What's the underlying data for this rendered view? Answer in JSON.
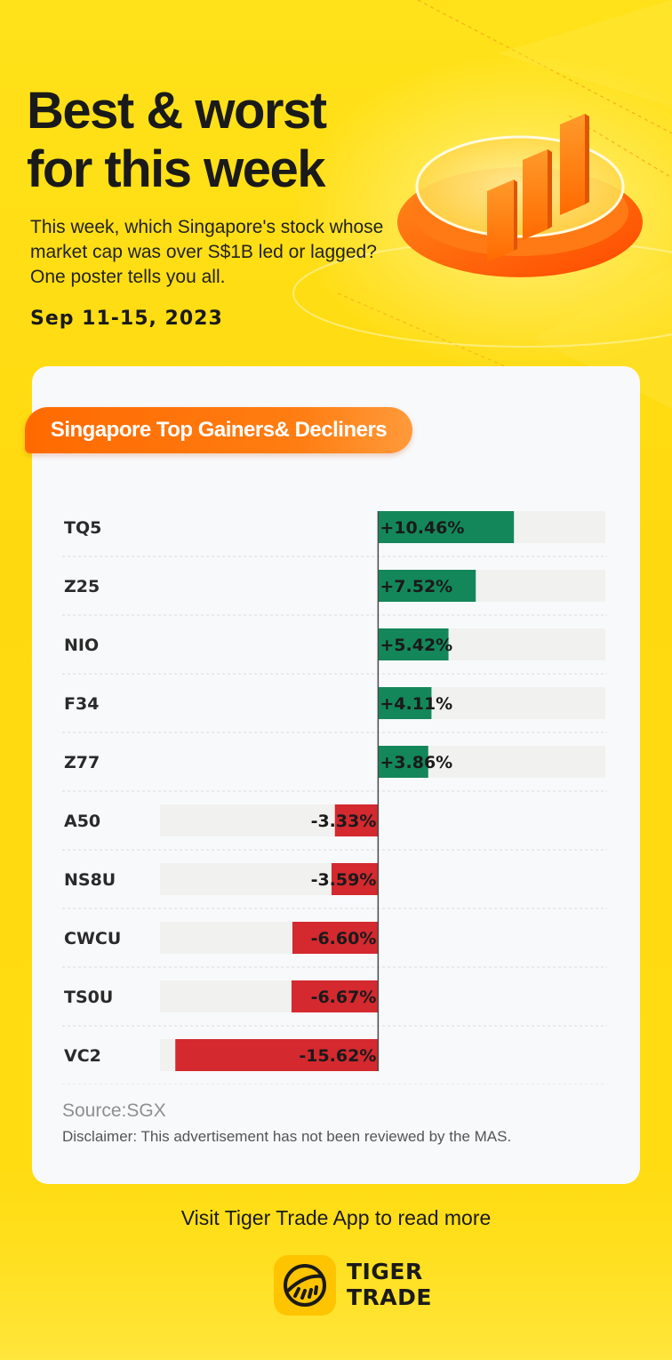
{
  "header": {
    "title_line1": "Best & worst",
    "title_line2": "for this week",
    "subtitle": "This week, which Singapore's stock whose market cap was over S$1B led or lagged? One poster tells you all.",
    "date_range": "Sep 11-15, 2023"
  },
  "card": {
    "pill_label": "Singapore Top Gainers& Decliners",
    "source": "Source:SGX",
    "disclaimer": "Disclaimer: This advertisement has not been reviewed by the MAS."
  },
  "footer": {
    "cta": "Visit Tiger Trade App to read more",
    "brand_line1": "TIGER",
    "brand_line2": "TRADE"
  },
  "colors": {
    "gain": "#14875a",
    "loss": "#d3292f",
    "track": "#f1f1ef",
    "accent": "#ff6a00"
  },
  "icons": [
    "bar-chart-podium-icon",
    "tiger-logo-icon"
  ],
  "chart_data": {
    "type": "bar",
    "orientation": "horizontal",
    "categories": [
      "TQ5",
      "Z25",
      "NIO",
      "F34",
      "Z77",
      "A50",
      "NS8U",
      "CWCU",
      "TS0U",
      "VC2"
    ],
    "values": [
      10.46,
      7.52,
      5.42,
      4.11,
      3.86,
      -3.33,
      -3.59,
      -6.6,
      -6.67,
      -15.62
    ],
    "labels": [
      "+10.46%",
      "+7.52%",
      "+5.42%",
      "+4.11%",
      "+3.86%",
      "-3.33%",
      "-3.59%",
      "-6.60%",
      "-6.67%",
      "-15.62%"
    ],
    "unit": "%",
    "xlim": [
      -16.8,
      17.5
    ],
    "grid": false,
    "legend": "none"
  }
}
